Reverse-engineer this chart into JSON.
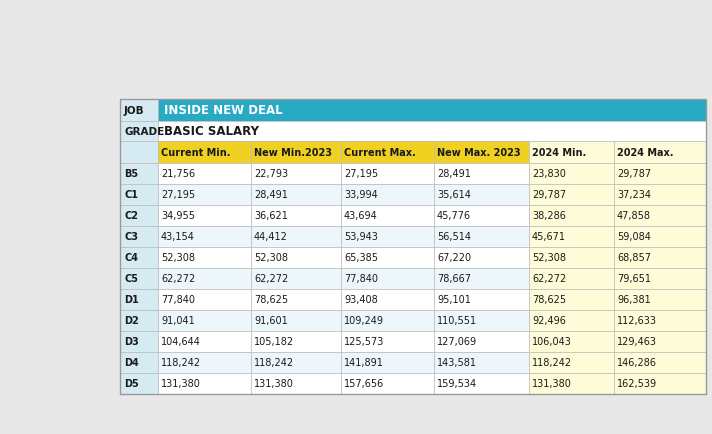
{
  "title_banner": "INSIDE NEW DEAL",
  "subtitle": "BASIC SALARY",
  "columns": [
    "Current Min.",
    "New Min.2023",
    "Current Max.",
    "New Max. 2023",
    "2024 Min.",
    "2024 Max."
  ],
  "rows": [
    [
      "B5",
      "21,756",
      "22,793",
      "27,195",
      "28,491",
      "23,830",
      "29,787"
    ],
    [
      "C1",
      "27,195",
      "28,491",
      "33,994",
      "35,614",
      "29,787",
      "37,234"
    ],
    [
      "C2",
      "34,955",
      "36,621",
      "43,694",
      "45,776",
      "38,286",
      "47,858"
    ],
    [
      "C3",
      "43,154",
      "44,412",
      "53,943",
      "56,514",
      "45,671",
      "59,084"
    ],
    [
      "C4",
      "52,308",
      "52,308",
      "65,385",
      "67,220",
      "52,308",
      "68,857"
    ],
    [
      "C5",
      "62,272",
      "62,272",
      "77,840",
      "78,667",
      "62,272",
      "79,651"
    ],
    [
      "D1",
      "77,840",
      "78,625",
      "93,408",
      "95,101",
      "78,625",
      "96,381"
    ],
    [
      "D2",
      "91,041",
      "91,601",
      "109,249",
      "110,551",
      "92,496",
      "112,633"
    ],
    [
      "D3",
      "104,644",
      "105,182",
      "125,573",
      "127,069",
      "106,043",
      "129,463"
    ],
    [
      "D4",
      "118,242",
      "118,242",
      "141,891",
      "143,581",
      "118,242",
      "146,286"
    ],
    [
      "D5",
      "131,380",
      "131,380",
      "157,656",
      "159,534",
      "131,380",
      "162,539"
    ]
  ],
  "banner_color": "#29AAC4",
  "banner_text_color": "#FFFFFF",
  "header_bg_color": "#F0D020",
  "header_text_color": "#1a1a1a",
  "grade_col_bg": "#D6EAF2",
  "row_color1": "#FFFFFF",
  "row_color2": "#EDF6FA",
  "last_two_col_bg": "#FEFBD8",
  "grid_color": "#BBBBBB",
  "text_color": "#1a1a1a",
  "background_color": "#E8E8E8",
  "fs_banner": 8.5,
  "fs_header": 7.0,
  "fs_data": 7.0,
  "fs_label": 7.5
}
